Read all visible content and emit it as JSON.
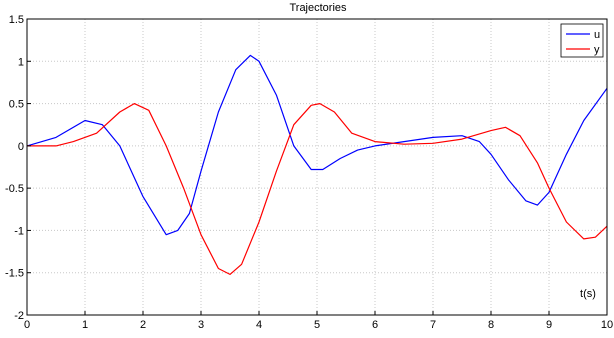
{
  "chart_data": {
    "type": "line",
    "title": "Trajectories",
    "xlabel": "",
    "ylabel": "",
    "annotations": [
      "t(s)"
    ],
    "xlim": [
      0,
      10
    ],
    "ylim": [
      -2,
      1.5
    ],
    "xticks": [
      "0",
      "1",
      "2",
      "3",
      "4",
      "5",
      "6",
      "7",
      "8",
      "9",
      "10"
    ],
    "yticks": [
      "1.5",
      "1",
      "0.5",
      "0",
      "-0.5",
      "-1",
      "-1.5",
      "-2"
    ],
    "grid": true,
    "legend": {
      "position": "top-right",
      "entries": [
        "u",
        "y"
      ]
    },
    "series": [
      {
        "name": "u",
        "color": "#0000ff",
        "x": [
          0,
          0.5,
          1.0,
          1.3,
          1.6,
          2.0,
          2.4,
          2.6,
          2.8,
          3.0,
          3.3,
          3.6,
          3.85,
          4.0,
          4.3,
          4.6,
          4.9,
          5.1,
          5.4,
          5.7,
          6.0,
          6.5,
          7.0,
          7.5,
          7.8,
          8.0,
          8.3,
          8.6,
          8.8,
          9.0,
          9.3,
          9.6,
          10.0
        ],
        "y": [
          0,
          0.1,
          0.3,
          0.25,
          0.0,
          -0.6,
          -1.05,
          -1.0,
          -0.8,
          -0.3,
          0.4,
          0.9,
          1.07,
          1.0,
          0.6,
          0.0,
          -0.28,
          -0.28,
          -0.15,
          -0.05,
          0.0,
          0.05,
          0.1,
          0.12,
          0.05,
          -0.1,
          -0.4,
          -0.65,
          -0.7,
          -0.55,
          -0.1,
          0.3,
          0.68
        ]
      },
      {
        "name": "y",
        "color": "#ff0000",
        "x": [
          0,
          0.5,
          0.8,
          1.2,
          1.6,
          1.85,
          2.1,
          2.4,
          2.7,
          3.0,
          3.3,
          3.5,
          3.7,
          4.0,
          4.3,
          4.6,
          4.9,
          5.05,
          5.3,
          5.6,
          6.0,
          6.5,
          7.0,
          7.5,
          8.0,
          8.25,
          8.5,
          8.8,
          9.0,
          9.3,
          9.6,
          9.8,
          10.0
        ],
        "y": [
          0,
          0.0,
          0.05,
          0.15,
          0.4,
          0.5,
          0.42,
          0.0,
          -0.5,
          -1.05,
          -1.45,
          -1.52,
          -1.4,
          -0.9,
          -0.3,
          0.25,
          0.48,
          0.5,
          0.4,
          0.15,
          0.05,
          0.02,
          0.03,
          0.08,
          0.18,
          0.22,
          0.12,
          -0.2,
          -0.5,
          -0.9,
          -1.1,
          -1.08,
          -0.95
        ]
      }
    ]
  }
}
